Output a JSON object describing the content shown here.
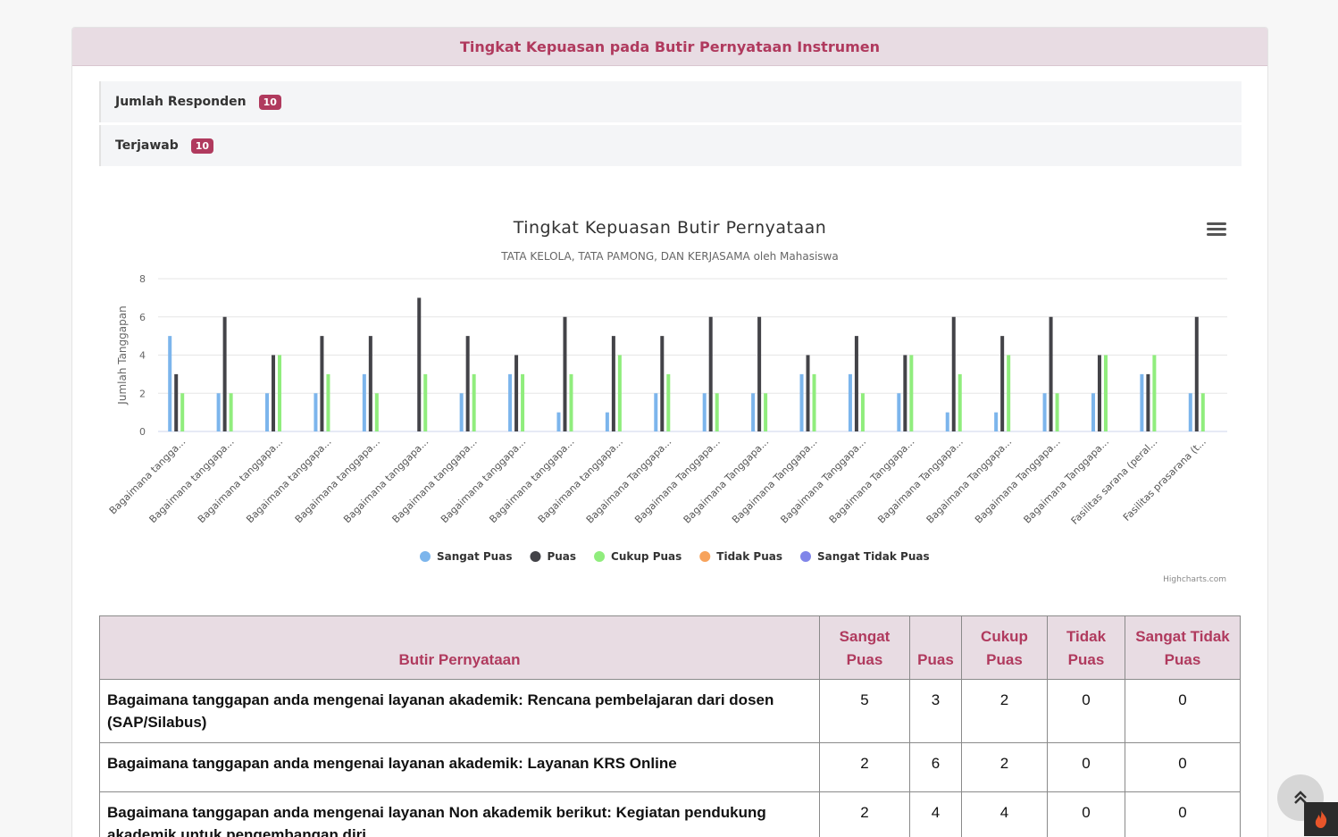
{
  "header": {
    "title": "Tingkat Kepuasan pada Butir Pernyataan Instrumen"
  },
  "stats": [
    {
      "label": "Jumlah Responden",
      "value": "10"
    },
    {
      "label": "Terjawab",
      "value": "10"
    }
  ],
  "credits": "Highcharts.com",
  "colors": {
    "sangat_puas": "#7cb5ec",
    "puas": "#434348",
    "cukup_puas": "#90ed7d",
    "tidak_puas": "#f7a35c",
    "sangat_tidak_puas": "#8085e9",
    "accent": "#b03a5e"
  },
  "chart_data": {
    "type": "bar",
    "title": "Tingkat Kepuasan Butir Pernyataan",
    "subtitle": "TATA KELOLA, TATA PAMONG, DAN KERJASAMA oleh Mahasiswa",
    "ylabel": "Jumlah Tanggapan",
    "xlabel": "",
    "ylim": [
      0,
      8
    ],
    "yticks": [
      0,
      2,
      4,
      6,
      8
    ],
    "grid": true,
    "legend_position": "bottom-center",
    "categories": [
      "Bagaimana tangga...",
      "Bagaimana tanggapa...",
      "Bagaimana tanggapa...",
      "Bagaimana tanggapa...",
      "Bagaimana tanggapa...",
      "Bagaimana tanggapa...",
      "Bagaimana tanggapa...",
      "Bagaimana tanggapa...",
      "Bagaimana tanggapa...",
      "Bagaimana tanggapa...",
      "Bagaimana Tanggapa...",
      "Bagaimana Tanggapa...",
      "Bagaimana Tanggapa...",
      "Bagaimana Tanggapa...",
      "Bagaimana Tanggapa...",
      "Bagaimana Tanggapa...",
      "Bagaimana Tanggapa...",
      "Bagaimana Tanggapa...",
      "Bagaimana Tanggapa...",
      "Bagaimana Tanggapa...",
      "Fasilitas sarana (peral...",
      "Fasilitas prasarana (t..."
    ],
    "series": [
      {
        "name": "Sangat Puas",
        "color": "#7cb5ec",
        "values": [
          5,
          2,
          2,
          2,
          3,
          0,
          2,
          3,
          1,
          1,
          2,
          2,
          2,
          3,
          3,
          2,
          1,
          1,
          2,
          2,
          3,
          2
        ]
      },
      {
        "name": "Puas",
        "color": "#434348",
        "values": [
          3,
          6,
          4,
          5,
          5,
          7,
          5,
          4,
          6,
          5,
          5,
          6,
          6,
          4,
          5,
          4,
          6,
          5,
          6,
          4,
          3,
          6
        ]
      },
      {
        "name": "Cukup Puas",
        "color": "#90ed7d",
        "values": [
          2,
          2,
          4,
          3,
          2,
          3,
          3,
          3,
          3,
          4,
          3,
          2,
          2,
          3,
          2,
          4,
          3,
          4,
          2,
          4,
          4,
          2
        ]
      },
      {
        "name": "Tidak Puas",
        "color": "#f7a35c",
        "values": [
          0,
          0,
          0,
          0,
          0,
          0,
          0,
          0,
          0,
          0,
          0,
          0,
          0,
          0,
          0,
          0,
          0,
          0,
          0,
          0,
          0,
          0
        ]
      },
      {
        "name": "Sangat Tidak Puas",
        "color": "#8085e9",
        "values": [
          0,
          0,
          0,
          0,
          0,
          0,
          0,
          0,
          0,
          0,
          0,
          0,
          0,
          0,
          0,
          0,
          0,
          0,
          0,
          0,
          0,
          0
        ]
      }
    ]
  },
  "table": {
    "headers": [
      "Butir Pernyataan",
      "Sangat Puas",
      "Puas",
      "Cukup Puas",
      "Tidak Puas",
      "Sangat Tidak Puas"
    ],
    "rows": [
      {
        "text": "Bagaimana tanggapan anda mengenai layanan akademik: Rencana pembelajaran dari dosen (SAP/Silabus)",
        "v": [
          "5",
          "3",
          "2",
          "0",
          "0"
        ]
      },
      {
        "text": "Bagaimana tanggapan anda mengenai layanan akademik: Layanan KRS Online",
        "v": [
          "2",
          "6",
          "2",
          "0",
          "0"
        ]
      },
      {
        "text": "Bagaimana tanggapan anda mengenai layanan Non akademik berikut: Kegiatan pendukung akademik untuk pengembangan diri",
        "v": [
          "2",
          "4",
          "4",
          "0",
          "0"
        ]
      }
    ]
  }
}
